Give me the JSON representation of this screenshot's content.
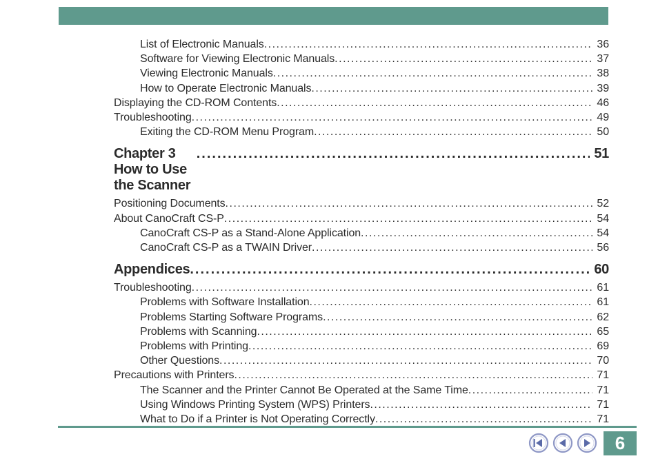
{
  "header": {
    "bar_color": "#5f9a8d"
  },
  "toc": {
    "plain1": [
      {
        "label": "List of Electronic Manuals",
        "page": "36",
        "indent": true
      },
      {
        "label": "Software for Viewing Electronic Manuals",
        "page": "37",
        "indent": true
      },
      {
        "label": "Viewing Electronic Manuals",
        "page": "38",
        "indent": true
      },
      {
        "label": "How to Operate Electronic Manuals",
        "page": "39",
        "indent": true
      },
      {
        "label": "Displaying the CD-ROM Contents",
        "page": "46",
        "indent": false
      },
      {
        "label": "Troubleshooting",
        "page": "49",
        "indent": false
      },
      {
        "label": "Exiting the CD-ROM Menu Program",
        "page": "50",
        "indent": true
      }
    ],
    "chapter1": {
      "title": "Chapter 3  How to Use the Scanner",
      "page": "51"
    },
    "plain2": [
      {
        "label": "Positioning Documents",
        "page": "52",
        "indent": false
      },
      {
        "label": "About CanoCraft CS-P",
        "page": "54",
        "indent": false
      },
      {
        "label": "CanoCraft CS-P as a Stand-Alone Application",
        "page": "54",
        "indent": true
      },
      {
        "label": "CanoCraft CS-P as a TWAIN Driver",
        "page": "56",
        "indent": true
      }
    ],
    "chapter2": {
      "title": "Appendices",
      "page": "60"
    },
    "plain3": [
      {
        "label": "Troubleshooting",
        "page": "61",
        "indent": false
      },
      {
        "label": "Problems with Software Installation",
        "page": "61",
        "indent": true
      },
      {
        "label": "Problems Starting Software Programs",
        "page": "62",
        "indent": true
      },
      {
        "label": "Problems with Scanning",
        "page": "65",
        "indent": true
      },
      {
        "label": "Problems with Printing",
        "page": "69",
        "indent": true
      },
      {
        "label": "Other Questions",
        "page": "70",
        "indent": true
      },
      {
        "label": "Precautions with Printers",
        "page": "71",
        "indent": false
      },
      {
        "label": "The Scanner and the Printer Cannot Be Operated at the Same Time",
        "page": "71",
        "indent": true
      },
      {
        "label": "Using Windows Printing System (WPS) Printers",
        "page": "71",
        "indent": true
      },
      {
        "label": "What to Do if a Printer is Not Operating Correctly",
        "page": "71",
        "indent": true
      }
    ]
  },
  "footer": {
    "line_color": "#5f9a8d",
    "page_number": "6",
    "page_box_color": "#5f9a8d",
    "nav": {
      "first_icon": "first",
      "prev_icon": "prev",
      "next_icon": "next",
      "ring_color": "#8f98c6",
      "arrow_color": "#5a6aa8"
    }
  },
  "style": {
    "text_color": "#2b2b2b",
    "body_fontsize": 16,
    "chapter_fontsize": 20
  }
}
